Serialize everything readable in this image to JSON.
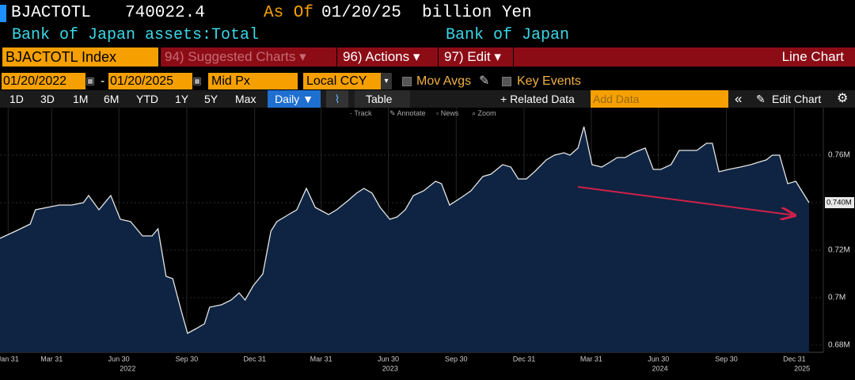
{
  "header": {
    "ticker": "BJACTOTL",
    "last": "740022.4",
    "as_of_label": "As Of",
    "as_of": "01/20/25",
    "units": "billion Yen",
    "description": "Bank of Japan assets:Total",
    "source": "Bank of Japan"
  },
  "toolbar": {
    "security": "BJACTOTL Index",
    "menus": [
      "94) Suggested Charts",
      "96) Actions",
      "97) Edit"
    ],
    "chart_type": "Line Chart"
  },
  "controls": {
    "start": "01/20/2022",
    "separator": "-",
    "end": "01/20/2025",
    "price": "Mid Px",
    "currency": "Local CCY",
    "mov_avgs": "Mov Avgs",
    "key_events": "Key Events"
  },
  "range_bar": {
    "periods": [
      "1D",
      "3D",
      "1M",
      "6M",
      "YTD",
      "1Y",
      "5Y",
      "Max"
    ],
    "frequency": "Daily ▼",
    "table": "Table",
    "related": "+ Related Data",
    "add_data": "Add Data",
    "edit_chart": "Edit Chart"
  },
  "chart_tools": [
    "Track",
    "Annotate",
    "News",
    "Zoom"
  ],
  "chart_data": {
    "type": "area",
    "color": "#e6e6e6",
    "fill": "#0e2442",
    "grid": true,
    "x": [
      "2022-01-20",
      "2022-02-10",
      "2022-03-02",
      "2022-03-09",
      "2022-03-25",
      "2022-04-10",
      "2022-04-27",
      "2022-05-13",
      "2022-05-20",
      "2022-06-03",
      "2022-06-19",
      "2022-07-02",
      "2022-07-16",
      "2022-08-01",
      "2022-08-14",
      "2022-08-22",
      "2022-09-02",
      "2022-09-11",
      "2022-09-22",
      "2022-10-01",
      "2022-10-13",
      "2022-10-24",
      "2022-10-31",
      "2022-11-16",
      "2022-11-29",
      "2022-12-10",
      "2022-12-18",
      "2022-12-29",
      "2023-01-11",
      "2023-01-22",
      "2023-01-30",
      "2023-02-15",
      "2023-02-26",
      "2023-03-11",
      "2023-03-23",
      "2023-04-10",
      "2023-04-21",
      "2023-05-07",
      "2023-05-18",
      "2023-05-28",
      "2023-06-08",
      "2023-06-19",
      "2023-07-02",
      "2023-07-12",
      "2023-07-23",
      "2023-08-03",
      "2023-08-17",
      "2023-09-02",
      "2023-09-10",
      "2023-09-21",
      "2023-10-06",
      "2023-10-20",
      "2023-11-05",
      "2023-11-16",
      "2023-12-02",
      "2023-12-13",
      "2023-12-23",
      "2024-01-03",
      "2024-01-14",
      "2024-01-30",
      "2024-02-10",
      "2024-02-23",
      "2024-03-02",
      "2024-03-13",
      "2024-03-21",
      "2024-04-01",
      "2024-04-14",
      "2024-04-25",
      "2024-05-05",
      "2024-05-16",
      "2024-05-27",
      "2024-06-12",
      "2024-06-23",
      "2024-07-03",
      "2024-07-17",
      "2024-07-28",
      "2024-08-10",
      "2024-08-21",
      "2024-09-03",
      "2024-09-11",
      "2024-09-20",
      "2024-10-03",
      "2024-10-19",
      "2024-11-02",
      "2024-11-12",
      "2024-11-23",
      "2024-12-01",
      "2024-12-11",
      "2024-12-22",
      "2025-01-02",
      "2025-01-12",
      "2025-01-20"
    ],
    "values": [
      0.725,
      0.728,
      0.731,
      0.737,
      0.738,
      0.739,
      0.739,
      0.74,
      0.743,
      0.737,
      0.743,
      0.733,
      0.732,
      0.726,
      0.726,
      0.729,
      0.709,
      0.708,
      0.695,
      0.685,
      0.687,
      0.689,
      0.696,
      0.697,
      0.699,
      0.702,
      0.699,
      0.705,
      0.71,
      0.728,
      0.732,
      0.735,
      0.737,
      0.746,
      0.738,
      0.735,
      0.737,
      0.741,
      0.744,
      0.746,
      0.744,
      0.738,
      0.733,
      0.734,
      0.737,
      0.743,
      0.745,
      0.749,
      0.748,
      0.739,
      0.742,
      0.745,
      0.751,
      0.752,
      0.756,
      0.755,
      0.75,
      0.75,
      0.753,
      0.758,
      0.76,
      0.761,
      0.76,
      0.763,
      0.772,
      0.756,
      0.755,
      0.757,
      0.759,
      0.759,
      0.761,
      0.763,
      0.754,
      0.754,
      0.756,
      0.762,
      0.762,
      0.762,
      0.765,
      0.765,
      0.753,
      0.754,
      0.755,
      0.756,
      0.757,
      0.758,
      0.76,
      0.76,
      0.748,
      0.749,
      0.744,
      0.74
    ],
    "current_label": "0.740M",
    "xlim": [
      "2022-01-20",
      "2025-01-20"
    ],
    "ylim": [
      0.677,
      0.78
    ],
    "yticks": [
      {
        "value": 0.68,
        "label": "0.68M"
      },
      {
        "value": 0.7,
        "label": "0.7M"
      },
      {
        "value": 0.72,
        "label": "0.72M"
      },
      {
        "value": 0.74,
        "label": "0.74M"
      },
      {
        "value": 0.76,
        "label": "0.76M"
      }
    ],
    "xticks": [
      {
        "value": "2022-01-31",
        "label": "Jan 31"
      },
      {
        "value": "2022-03-31",
        "label": "Mar 31"
      },
      {
        "value": "2022-06-30",
        "label": "Jun 30"
      },
      {
        "value": "2022-09-30",
        "label": "Sep 30"
      },
      {
        "value": "2022-12-31",
        "label": "Dec 31"
      },
      {
        "value": "2023-03-31",
        "label": "Mar 31"
      },
      {
        "value": "2023-06-30",
        "label": "Jun 30"
      },
      {
        "value": "2023-09-30",
        "label": "Sep 30"
      },
      {
        "value": "2023-12-31",
        "label": "Dec 31"
      },
      {
        "value": "2024-03-31",
        "label": "Mar 31"
      },
      {
        "value": "2024-06-30",
        "label": "Jun 30"
      },
      {
        "value": "2024-09-30",
        "label": "Sep 30"
      },
      {
        "value": "2024-12-31",
        "label": "Dec 31"
      }
    ],
    "years": [
      "2022",
      "2023",
      "2024",
      "2025"
    ]
  }
}
